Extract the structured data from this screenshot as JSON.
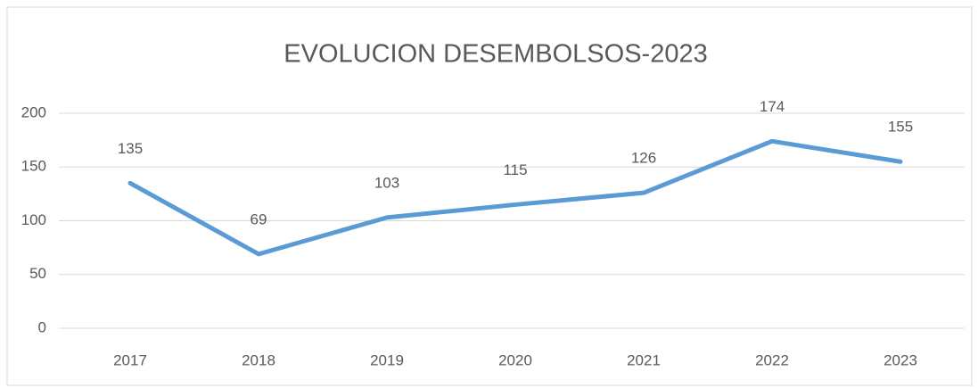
{
  "chart_data": {
    "type": "line",
    "title": "EVOLUCION DESEMBOLSOS-2023",
    "categories": [
      "2017",
      "2018",
      "2019",
      "2020",
      "2021",
      "2022",
      "2023"
    ],
    "series": [
      {
        "name": "Desembolsos",
        "color": "#5b9bd5",
        "values": [
          135,
          69,
          103,
          115,
          126,
          174,
          155
        ]
      }
    ],
    "ylim": [
      0,
      200
    ],
    "yticks": [
      0,
      50,
      100,
      150,
      200
    ],
    "grid": true
  }
}
